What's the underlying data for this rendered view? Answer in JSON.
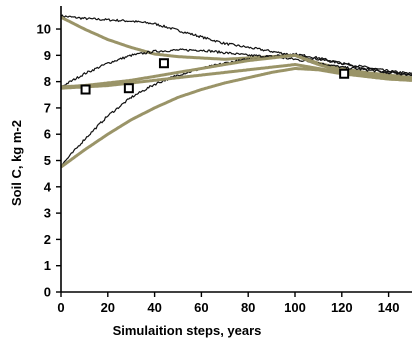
{
  "chart_data": {
    "type": "line",
    "title": "",
    "xlabel": "Simulaition steps,  years",
    "ylabel": "Soil C,  kg m-2",
    "xlim": [
      0,
      150
    ],
    "ylim": [
      0,
      10.8
    ],
    "xticks": [
      0,
      20,
      40,
      60,
      80,
      100,
      120,
      140
    ],
    "yticks": [
      0,
      1,
      2,
      3,
      4,
      5,
      6,
      7,
      8,
      9,
      10
    ],
    "grid": false,
    "legend": "none",
    "colors": {
      "black": "#111111",
      "olive": "#9a9468",
      "axis": "#000000"
    },
    "series": [
      {
        "color": "black",
        "x": [
          0,
          10,
          20,
          30,
          40,
          50,
          60,
          70,
          80,
          90,
          100,
          110,
          120,
          130,
          140,
          150
        ],
        "y": [
          10.5,
          10.4,
          10.35,
          10.3,
          10.2,
          9.95,
          9.7,
          9.45,
          9.3,
          9.15,
          9.0,
          8.85,
          8.7,
          8.55,
          8.4,
          8.3
        ]
      },
      {
        "color": "olive",
        "x": [
          0,
          10,
          20,
          30,
          40,
          50,
          60,
          70,
          80,
          90,
          100,
          110,
          120,
          130,
          140,
          150
        ],
        "y": [
          10.45,
          10.0,
          9.6,
          9.3,
          9.05,
          8.95,
          8.9,
          8.85,
          8.9,
          8.95,
          9.0,
          8.7,
          8.5,
          8.35,
          8.25,
          8.15
        ]
      },
      {
        "color": "black",
        "x": [
          0,
          10,
          20,
          30,
          40,
          50,
          60,
          70,
          80,
          90,
          100,
          110,
          120,
          130,
          140,
          150
        ],
        "y": [
          7.8,
          8.3,
          8.7,
          9.0,
          9.15,
          9.2,
          9.2,
          9.1,
          9.0,
          8.95,
          8.85,
          8.7,
          8.55,
          8.45,
          8.35,
          8.25
        ]
      },
      {
        "color": "black",
        "x": [
          0,
          10,
          20,
          30,
          40,
          50,
          60,
          70,
          80,
          90,
          100,
          110,
          120,
          130,
          140,
          150
        ],
        "y": [
          4.8,
          5.8,
          6.7,
          7.4,
          7.9,
          8.25,
          8.5,
          8.7,
          8.85,
          8.95,
          9.05,
          8.9,
          8.7,
          8.5,
          8.35,
          8.25
        ]
      },
      {
        "color": "olive",
        "x": [
          0,
          10,
          20,
          30,
          40,
          50,
          60,
          70,
          80,
          90,
          100,
          110,
          120,
          130,
          140,
          150
        ],
        "y": [
          7.8,
          7.85,
          7.95,
          8.05,
          8.2,
          8.35,
          8.5,
          8.65,
          8.8,
          8.9,
          9.0,
          8.65,
          8.4,
          8.25,
          8.15,
          8.1
        ]
      },
      {
        "color": "olive",
        "x": [
          0,
          10,
          20,
          30,
          40,
          50,
          60,
          70,
          80,
          90,
          100,
          110,
          120,
          130,
          140,
          150
        ],
        "y": [
          7.75,
          7.8,
          7.85,
          7.95,
          8.05,
          8.15,
          8.25,
          8.35,
          8.45,
          8.55,
          8.65,
          8.5,
          8.35,
          8.2,
          8.1,
          8.05
        ]
      },
      {
        "color": "olive",
        "x": [
          0,
          10,
          20,
          30,
          40,
          50,
          60,
          70,
          80,
          90,
          100,
          110,
          120,
          130,
          140,
          150
        ],
        "y": [
          4.75,
          5.4,
          6.0,
          6.55,
          7.0,
          7.4,
          7.7,
          7.95,
          8.15,
          8.35,
          8.5,
          8.45,
          8.3,
          8.2,
          8.1,
          8.05
        ]
      }
    ],
    "markers": [
      {
        "x": 10.5,
        "y": 7.7
      },
      {
        "x": 29,
        "y": 7.75
      },
      {
        "x": 44,
        "y": 8.7
      },
      {
        "x": 121,
        "y": 8.3
      }
    ]
  }
}
